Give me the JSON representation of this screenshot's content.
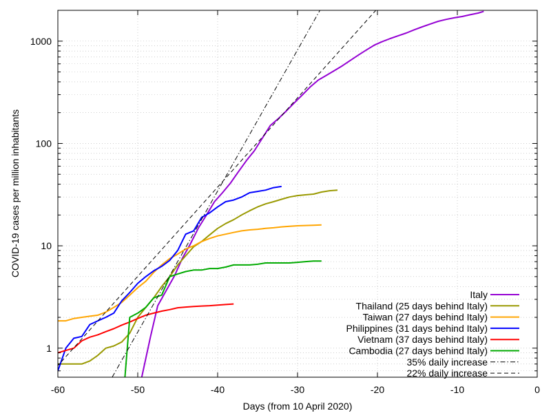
{
  "chart_data": {
    "type": "line",
    "title": "",
    "xlabel": "Days (from 10 April 2020)",
    "ylabel": "COVID-19 cases per million inhabitants",
    "xlim": [
      -60,
      0
    ],
    "ylim": [
      0.52,
      2000
    ],
    "yscale": "log",
    "grid": true,
    "legend_position": "bottom-right",
    "x_ticks": [
      {
        "value": -60,
        "label": "-60"
      },
      {
        "value": -50,
        "label": "-50"
      },
      {
        "value": -40,
        "label": "-40"
      },
      {
        "value": -30,
        "label": "-30"
      },
      {
        "value": -20,
        "label": "-20"
      },
      {
        "value": -10,
        "label": "-10"
      },
      {
        "value": 0,
        "label": "0"
      }
    ],
    "y_ticks": [
      {
        "value": 1,
        "label": "1"
      },
      {
        "value": 10,
        "label": "10"
      },
      {
        "value": 100,
        "label": "100"
      },
      {
        "value": 1000,
        "label": "1000"
      }
    ],
    "series": [
      {
        "name": "Italy",
        "color": "#9400d3",
        "style": "solid",
        "x": [
          -49.5,
          -48.4,
          -47.5,
          -46.4,
          -45.4,
          -44.4,
          -43.4,
          -42.4,
          -41.4,
          -40.4,
          -39.4,
          -38.4,
          -37.4,
          -36.4,
          -35.4,
          -34.4,
          -33.4,
          -32.4,
          -31.4,
          -30.4,
          -29.4,
          -28.4,
          -27.4,
          -26.4,
          -25.4,
          -24.4,
          -23.4,
          -22.4,
          -21.4,
          -20.4,
          -19.4,
          -18.4,
          -17.4,
          -16.4,
          -15.4,
          -14.4,
          -13.4,
          -12.4,
          -11.4,
          -10.4,
          -9.4,
          -8.4,
          -7.4,
          -6.7
        ],
        "y": [
          0.52,
          1.3,
          2.6,
          3.7,
          5.1,
          7.6,
          10.5,
          15.0,
          20.0,
          27.0,
          33.0,
          41.0,
          53.0,
          68.0,
          85.0,
          113.0,
          150.0,
          175.0,
          208.0,
          250.0,
          298.0,
          358.0,
          417.0,
          463.0,
          515.0,
          574.0,
          648.0,
          730.0,
          818.0,
          913.0,
          990.0,
          1060.0,
          1130.0,
          1200.0,
          1290.0,
          1380.0,
          1470.0,
          1560.0,
          1630.0,
          1690.0,
          1740.0,
          1810.0,
          1880.0,
          1950.0
        ]
      },
      {
        "name": "Thailand (25 days behind Italy)",
        "color": "#999900",
        "style": "solid",
        "x": [
          -60.0,
          -59.0,
          -58.0,
          -57.0,
          -56.0,
          -55.0,
          -54.0,
          -53.0,
          -52.0,
          -51.0,
          -50.0,
          -49.0,
          -48.0,
          -47.0,
          -46.0,
          -45.0,
          -44.0,
          -43.0,
          -42.0,
          -41.0,
          -40.0,
          -39.0,
          -38.0,
          -37.0,
          -36.0,
          -35.0,
          -34.0,
          -33.0,
          -32.0,
          -31.0,
          -30.0,
          -29.0,
          -28.0,
          -27.0,
          -26.0,
          -25.0
        ],
        "y": [
          0.7,
          0.7,
          0.7,
          0.7,
          0.75,
          0.85,
          1.0,
          1.05,
          1.15,
          1.4,
          2.0,
          2.5,
          3.1,
          4.0,
          5.0,
          6.5,
          8.0,
          9.8,
          11.0,
          12.8,
          14.8,
          16.5,
          18.0,
          20.0,
          22.0,
          24.0,
          25.7,
          27.0,
          28.5,
          30.0,
          31.0,
          31.5,
          32.0,
          33.5,
          34.5,
          35.0
        ]
      },
      {
        "name": "Taiwan (27 days behind Italy)",
        "color": "#ffa500",
        "style": "solid",
        "x": [
          -60.0,
          -59.0,
          -58.0,
          -57.0,
          -56.0,
          -55.0,
          -54.0,
          -53.0,
          -52.0,
          -51.0,
          -50.0,
          -49.0,
          -48.0,
          -47.0,
          -46.0,
          -45.0,
          -44.0,
          -43.0,
          -42.0,
          -41.0,
          -40.0,
          -39.0,
          -38.0,
          -37.0,
          -36.0,
          -35.0,
          -34.0,
          -33.0,
          -32.0,
          -31.0,
          -30.0,
          -29.0,
          -28.0,
          -27.0
        ],
        "y": [
          1.85,
          1.85,
          1.95,
          2.0,
          2.05,
          2.1,
          2.25,
          2.5,
          2.8,
          3.3,
          3.9,
          4.5,
          5.5,
          6.5,
          7.5,
          8.3,
          9.3,
          10.0,
          11.0,
          11.8,
          12.5,
          13.0,
          13.5,
          14.0,
          14.3,
          14.5,
          14.8,
          15.0,
          15.3,
          15.5,
          15.7,
          15.8,
          15.9,
          16.0
        ]
      },
      {
        "name": "Philippines (31 days behind Italy)",
        "color": "#0000ff",
        "style": "solid",
        "x": [
          -60.0,
          -59.0,
          -58.0,
          -57.0,
          -56.0,
          -55.0,
          -54.0,
          -53.0,
          -52.0,
          -51.0,
          -50.0,
          -49.0,
          -48.0,
          -47.0,
          -46.0,
          -45.0,
          -44.0,
          -43.0,
          -42.0,
          -41.0,
          -40.0,
          -39.0,
          -38.0,
          -37.0,
          -36.0,
          -35.0,
          -34.0,
          -33.0,
          -32.0
        ],
        "y": [
          0.6,
          1.0,
          1.25,
          1.3,
          1.7,
          1.85,
          2.0,
          2.2,
          2.9,
          3.5,
          4.3,
          5.0,
          5.7,
          6.3,
          7.2,
          9.0,
          13.0,
          14.0,
          19.0,
          21.0,
          24.0,
          27.0,
          28.0,
          30.0,
          33.0,
          34.0,
          35.0,
          37.0,
          38.0
        ]
      },
      {
        "name": "Vietnam (37 days behind Italy)",
        "color": "#ff0000",
        "style": "solid",
        "x": [
          -60.0,
          -59.0,
          -58.0,
          -57.0,
          -56.0,
          -55.0,
          -54.0,
          -53.0,
          -52.0,
          -51.0,
          -50.0,
          -49.0,
          -48.0,
          -47.0,
          -46.0,
          -45.0,
          -44.0,
          -43.0,
          -42.0,
          -41.0,
          -40.0,
          -39.0,
          -38.0
        ],
        "y": [
          0.9,
          0.95,
          1.0,
          1.18,
          1.28,
          1.35,
          1.45,
          1.55,
          1.68,
          1.8,
          1.95,
          2.1,
          2.2,
          2.3,
          2.38,
          2.48,
          2.52,
          2.55,
          2.58,
          2.6,
          2.63,
          2.67,
          2.7
        ]
      },
      {
        "name": "Cambodia (27 days behind Italy)",
        "color": "#00aa00",
        "style": "solid",
        "x": [
          -51.6,
          -51.0,
          -50.0,
          -49.0,
          -48.0,
          -47.0,
          -46.0,
          -45.0,
          -44.0,
          -43.0,
          -42.0,
          -41.0,
          -40.0,
          -39.0,
          -38.0,
          -37.0,
          -36.0,
          -35.0,
          -34.0,
          -33.0,
          -32.0,
          -31.0,
          -30.0,
          -29.0,
          -28.0,
          -27.0
        ],
        "y": [
          0.52,
          2.0,
          2.2,
          2.5,
          3.1,
          3.3,
          5.0,
          5.3,
          5.6,
          5.8,
          5.8,
          6.0,
          6.0,
          6.2,
          6.5,
          6.5,
          6.5,
          6.6,
          6.8,
          6.8,
          6.8,
          6.8,
          6.9,
          7.0,
          7.1,
          7.1
        ]
      },
      {
        "name": "35% daily increase",
        "color": "#000000",
        "style": "dashdot",
        "x": [
          -53.2,
          -27.2
        ],
        "y": [
          0.52,
          2000
        ]
      },
      {
        "name": "22% daily increase",
        "color": "#000000",
        "style": "dashed",
        "x": [
          -61.3,
          -20.2
        ],
        "y": [
          0.52,
          2000
        ]
      }
    ]
  }
}
